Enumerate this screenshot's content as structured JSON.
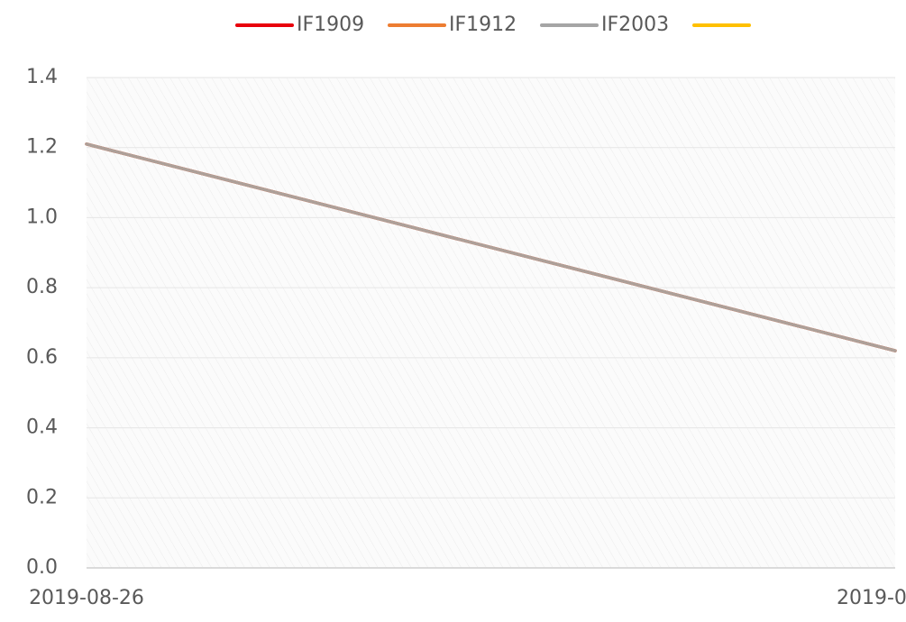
{
  "chart_data": {
    "type": "line",
    "categories": [
      "2019-08-26",
      "2019-0"
    ],
    "series": [
      {
        "name": "IF1909",
        "color": "#e8000b",
        "values": [
          1.21,
          0.62
        ]
      },
      {
        "name": "IF1912",
        "color": "#ed7d31",
        "values": [
          1.21,
          0.62
        ]
      },
      {
        "name": "IF2003",
        "color": "#a5a5a5",
        "values": [
          1.21,
          0.62
        ]
      },
      {
        "color": "#ffc000",
        "values": [
          null,
          null
        ]
      }
    ],
    "ylim": [
      0,
      1.4
    ],
    "yticks": [
      {
        "value": 0,
        "label": "0.0"
      },
      0.2,
      0.4,
      0.6,
      0.8,
      {
        "value": 1,
        "label": "1.0"
      },
      1.2,
      1.4
    ],
    "grid": true,
    "legend": "top"
  }
}
